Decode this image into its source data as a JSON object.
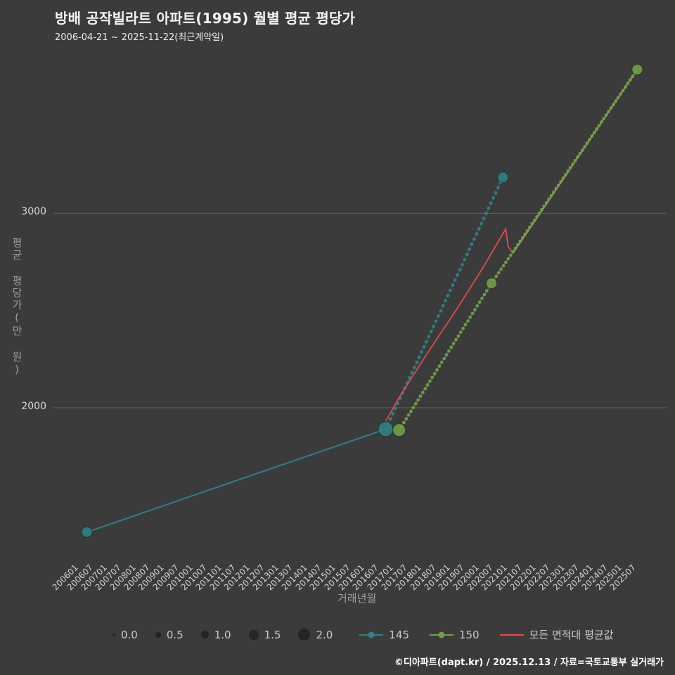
{
  "footer": {
    "credit": "©디아파트(dapt.kr) / 2025.12.13 / 자료=국토교통부 실거래가"
  },
  "chart_data": {
    "type": "line",
    "title": "방배 공작빌라트 아파트(1995) 월별 평균 평당가",
    "subtitle": "2006-04-21 ~ 2025-11-22(최근계약일)",
    "xlabel": "거래년월",
    "ylabel": "평균 평당가(만 원)",
    "background_color": "#3b3b3b",
    "grid": "horizontal",
    "x_tick_labels": [
      "200601",
      "200607",
      "200701",
      "200707",
      "200801",
      "200807",
      "200901",
      "200907",
      "201001",
      "201007",
      "201101",
      "201107",
      "201201",
      "201207",
      "201301",
      "201307",
      "201401",
      "201407",
      "201501",
      "201507",
      "201601",
      "201607",
      "201701",
      "201707",
      "201801",
      "201807",
      "201901",
      "201907",
      "202001",
      "202007",
      "202101",
      "202107",
      "202201",
      "202207",
      "202301",
      "202307",
      "202401",
      "202407",
      "202501",
      "202507"
    ],
    "y_tick_values": [
      2000,
      3000
    ],
    "x_range": [
      2005.3,
      2026.45
    ],
    "y_range": [
      1240,
      3790
    ],
    "legend": {
      "position": "bottom",
      "size_labels": [
        "0.0",
        "0.5",
        "1.0",
        "1.5",
        "2.0"
      ],
      "series_labels": [
        {
          "label": "145",
          "color": "#2f8388",
          "marker": "line-dot"
        },
        {
          "label": "150",
          "color": "#73a046",
          "marker": "line-dot"
        },
        {
          "label": "모든 면적대 평균값",
          "color": "#e94b4f",
          "marker": "line"
        }
      ]
    },
    "series": [
      {
        "name": "145",
        "type": "bubble-line",
        "color": "#2f8388",
        "anchors": [
          {
            "x": 2006.25,
            "y": 1360,
            "size": 1.0
          },
          {
            "x": 2016.7,
            "y": 1890,
            "size": 2.0
          },
          {
            "x": 2020.8,
            "y": 3185,
            "size": 1.0
          }
        ],
        "segment_styles": [
          "solid",
          "dotted"
        ]
      },
      {
        "name": "모든 면적대 평균값",
        "type": "line",
        "color": "#e94b4f",
        "points": [
          [
            2016.7,
            1930
          ],
          [
            2017.2,
            2060
          ],
          [
            2018.2,
            2290
          ],
          [
            2019.2,
            2510
          ],
          [
            2020.1,
            2720
          ],
          [
            2020.7,
            2870
          ],
          [
            2020.9,
            2920
          ],
          [
            2020.98,
            2830
          ],
          [
            2021.15,
            2795
          ]
        ],
        "overlap_color": "#b5a455",
        "overlap_points": [
          [
            2021.15,
            2795
          ],
          [
            2025.5,
            3740
          ]
        ]
      },
      {
        "name": "150",
        "type": "bubble-line",
        "color": "#73a046",
        "anchors": [
          {
            "x": 2017.17,
            "y": 1885,
            "size": 1.5
          },
          {
            "x": 2020.4,
            "y": 2640,
            "size": 1.0
          },
          {
            "x": 2025.5,
            "y": 3740,
            "size": 1.0
          }
        ],
        "segment_styles": [
          "dotted",
          "dotted"
        ]
      }
    ]
  }
}
